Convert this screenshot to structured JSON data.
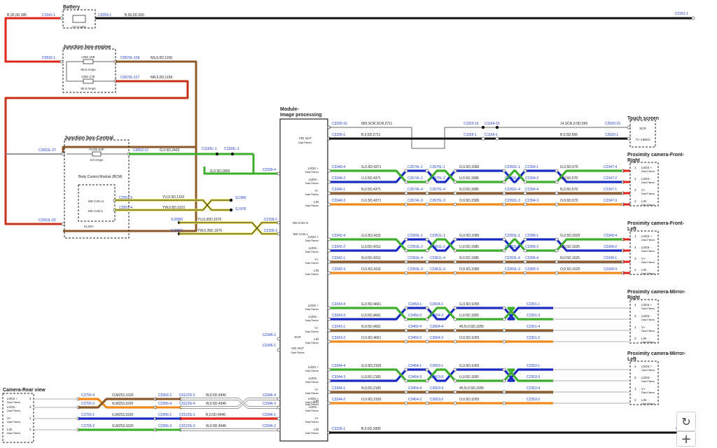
{
  "colors": {
    "red": "#e0231b",
    "black": "#111111",
    "brown": "#8c5a2a",
    "green": "#3cae2c",
    "blue": "#1a2ac0",
    "orange": "#f08a1c",
    "yellow": "#e8e24a",
    "darkred": "#c9301a",
    "connector": "#1e3cc8"
  },
  "top": {
    "wire_left": "R,35,0D,395",
    "battery_c1": "C1641-1",
    "battery_title": "Battery",
    "battery_rating": "12.0 Volts",
    "battery_c2": "C2559-1",
    "wire_right": "B,50,0D,265",
    "right_c": "C1551-1"
  },
  "jbe": {
    "title": "Junction box-engine",
    "c_left": "C0632-1",
    "link1": "LINK 15E",
    "amps1": "50.0 Amps",
    "link2": "LINK 17E",
    "amps2": "50.0 Amps",
    "c1": "C0570L-156",
    "w1": "NS,6,0D,1156",
    "c2": "C0570L-117",
    "w2": "NR,6,0D,1156"
  },
  "jbc": {
    "title": "Junction box-Central",
    "c_top_left": "C2553L-37",
    "fuse": "FUSE 63P",
    "amps": "5.0 Amps",
    "c_fuse": "C0552-12",
    "w_fuse": "G,0.5D,2420",
    "splice1": "C1165L-1",
    "splice2": "C1166L-1",
    "w_green": "G,0.5D,1856",
    "c_green": "C2339-4",
    "bcm": "Body Control Module (BCM)",
    "ms_can_h": "MS CAN H",
    "ms_can_l": "MS CAN L",
    "c_canh": "C2551-5",
    "c_canl": "C2551-4",
    "w_canh": "YU,0.5D,1103",
    "w_canl": "YW,0.5D,1103",
    "sj1": "SJ,866",
    "sj2": "SJ,876",
    "sj3": "SJ2006",
    "sj4": "SJ2007",
    "w_can2h": "YU,0.35D,1676",
    "w_can2l": "YW,0.35D,1676",
    "c_can2h": "C2339-2",
    "c_can2l": "C2339-3",
    "kl30": "KL30A",
    "c_bottom_left": "C2553L-32"
  },
  "module": {
    "title": "Module-Image processing",
    "vid_out": "VID OUT",
    "data_planes": "Data Planes",
    "lvds_p": "LVDS +",
    "lvds_m": "LVDS -",
    "vplus": "V+",
    "lin": "LIN",
    "ms_can_h": "MS CAN H",
    "ms_can_l": "MS CAN L",
    "scr": "SCR",
    "c_scr": "C2345-2",
    "c_vid": "C2345-1"
  },
  "vid": {
    "c1": "C3335-15",
    "w1": "683,SCR,SCR,2711",
    "c2": "C3335-1",
    "w2": "B,0.5D,2711",
    "s1": "C1153-15",
    "s2": "C1154-15",
    "s3": "C1155-1",
    "s4": "C1154-1",
    "w3": "14,SCR,0.5D,565",
    "w4": "B,0.5D,565",
    "c_ts1": "C2620-15",
    "c_ts2": "C2620-1"
  },
  "touch": {
    "title": "Touch screen",
    "scr": "SCR",
    "tv": "TV VIDEO"
  },
  "fr": {
    "title": "Proximity camera-Front-Right",
    "rows": [
      {
        "a": "C3340-4",
        "w1": "G,0.5D,4371",
        "b": "C2674L-1",
        "c": "C2675L-1",
        "w2": "G,0.5D,1585",
        "d": "C2392L-1",
        "e": "C2394-1",
        "w3": "G,0.5D,570",
        "f": "C2347-4"
      },
      {
        "a": "C3340-2",
        "w1": "U,0.5D,4371",
        "b": "C2674L-2",
        "c": "C2675L-2",
        "w2": "U,0.5D,1585",
        "d": "C2392L-2",
        "e": "C2394-2",
        "w3": "U,0.5D,570",
        "f": "C2347-2"
      },
      {
        "a": "C3340-1",
        "w1": "N,0.5D,4371",
        "b": "C2674L-4",
        "c": "C2675L-4",
        "w2": "N,0.5D,1585",
        "d": "C2392L-4",
        "e": "C2394-4",
        "w3": "N,0.5D,570",
        "f": "C2347-1"
      },
      {
        "a": "C3340-3",
        "w1": "O,0.5D,4371",
        "b": "C2674L-3",
        "c": "C2675L-3",
        "w2": "O,0.5D,1585",
        "d": "C2392L-3",
        "e": "C2394-3",
        "w3": "O,0.5D,570",
        "f": "C2347-3"
      }
    ]
  },
  "fl": {
    "title": "Proximity camera-Front-Left",
    "rows": [
      {
        "a": "C3342-4",
        "w1": "G,0.5D,4311",
        "b": "C2359L-1",
        "c": "C2361L-1",
        "w2": "G,0.5D,1585",
        "d": "C2393L-1",
        "e": "C2395-1",
        "w3": "G,0.5D,1625",
        "f": "C2349-4"
      },
      {
        "a": "C3342-2",
        "w1": "U,0.5D,4311",
        "b": "C2359L-2",
        "c": "C2361L-2",
        "w2": "U,0.5D,1585",
        "d": "C2393L-2",
        "e": "C2395-2",
        "w3": "U,0.5D,1625",
        "f": "C2349-2"
      },
      {
        "a": "C3342-1",
        "w1": "N,0.5D,4311",
        "b": "C2359L-4",
        "c": "C2361L-4",
        "w2": "N,0.5D,1585",
        "d": "C2393L-4",
        "e": "C2395-4",
        "w3": "N,0.5D,1625",
        "f": "C2349-1"
      },
      {
        "a": "C3342-3",
        "w1": "O,0.5D,4311",
        "b": "C2359L-3",
        "c": "C2361L-3",
        "w2": "O,0.5D,1585",
        "d": "C2393L-3",
        "e": "C2395-3",
        "w3": "O,0.5D,1625",
        "f": "C2349-3"
      }
    ]
  },
  "mr": {
    "title": "Proximity camera-Mirror-Right",
    "rows": [
      {
        "a": "C3343-4",
        "w1": "G,0.5D,4661",
        "b": "C3450-1",
        "c": "C3504-1",
        "w2": "G,0.5D,1055",
        "f": "C2351-1"
      },
      {
        "a": "C3343-3",
        "w1": "U,0.5D,4661",
        "b": "C3450-3",
        "c": "C3504-3",
        "w2": "U,0.5D,1055",
        "f": "C2351-3"
      },
      {
        "a": "C3343-1",
        "w1": "N,0.5D,4661",
        "b": "C3450-4",
        "c": "C3504-4",
        "w2": "45,N,0.5D,1055",
        "f": "C2351-4"
      },
      {
        "a": "C3343-2",
        "w1": "O,0.5D,4661",
        "b": "C3450-2",
        "c": "C3504-2",
        "w2": "O,0.5D,1055",
        "f": "C2351-2"
      }
    ]
  },
  "ml": {
    "title": "Proximity camera-Mirror-Left",
    "rows": [
      {
        "a": "C3344-4",
        "w1": "G,0.5D,2165",
        "b": "C3454-1",
        "c": "C3503-1",
        "w2": "G,0.5D,1055",
        "f": "C2353-1"
      },
      {
        "a": "C3344-3",
        "w1": "U,0.5D,2165",
        "b": "C3454-3",
        "c": "C3503-3",
        "w2": "U,0.5D,1055",
        "f": "C2353-3"
      },
      {
        "a": "C3344-1",
        "w1": "N,0.5D,2165",
        "b": "C3454-4",
        "c": "C3503-4",
        "w2": "45,N,0.5D,1055",
        "f": "C2353-4"
      },
      {
        "a": "C3344-2",
        "w1": "O,0.5D,2165",
        "b": "C3454-2",
        "c": "C3503-2",
        "w2": "O,0.5D,1055",
        "f": "C2353-2"
      }
    ]
  },
  "pins": [
    "1",
    "4",
    "3",
    "2"
  ],
  "pins_top": [
    "4",
    "3",
    "1",
    "2"
  ],
  "rear": {
    "title": "Camera-Rear view",
    "rows": [
      {
        "a": "C2755-4",
        "w1": "O,MZ53,1620",
        "b": "C0356-2",
        "c": "C0122S-2",
        "w2": "W,0.5D,4946",
        "f": "C3346-4"
      },
      {
        "a": "C2755-3",
        "w1": "N,MZ53,1620",
        "b": "C0356-4",
        "c": "C0122S-4",
        "w2": "W,0.5D,4946",
        "f": "C3346-3"
      },
      {
        "a": "C2755-1",
        "w1": "U,MZ53,1620",
        "b": "C0356-1",
        "c": "C0122S-1",
        "w2": "R,0.5D,4946",
        "f": "C3346-1"
      },
      {
        "a": "C2755-2",
        "w1": "G,MZ53,1620",
        "b": "C0356-3",
        "c": "C0122S-3",
        "w2": "W,0.5D,4946",
        "f": "C3346-2"
      }
    ],
    "pins": [
      "4",
      "3",
      "1",
      "2"
    ]
  },
  "ground": {
    "c": "C3335-1",
    "w": "B,0.5D,3995",
    "c_right": "C2596-1"
  },
  "controls": {
    "reset_icon": "refresh-icon",
    "zoom_icon": "plus-icon"
  }
}
